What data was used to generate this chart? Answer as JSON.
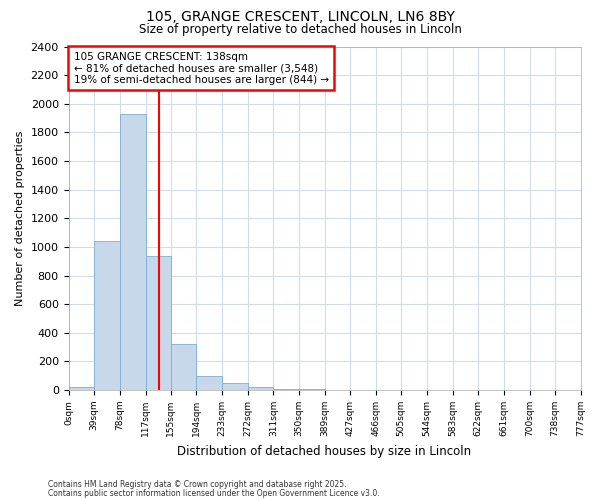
{
  "title1": "105, GRANGE CRESCENT, LINCOLN, LN6 8BY",
  "title2": "Size of property relative to detached houses in Lincoln",
  "xlabel": "Distribution of detached houses by size in Lincoln",
  "ylabel": "Number of detached properties",
  "bin_edges": [
    0,
    39,
    78,
    117,
    155,
    194,
    233,
    272,
    311,
    350,
    389,
    427,
    466,
    505,
    544,
    583,
    622,
    661,
    700,
    738,
    777
  ],
  "bin_labels": [
    "0sqm",
    "39sqm",
    "78sqm",
    "117sqm",
    "155sqm",
    "194sqm",
    "233sqm",
    "272sqm",
    "311sqm",
    "350sqm",
    "389sqm",
    "427sqm",
    "466sqm",
    "505sqm",
    "544sqm",
    "583sqm",
    "622sqm",
    "661sqm",
    "700sqm",
    "738sqm",
    "777sqm"
  ],
  "bar_heights": [
    20,
    1040,
    1930,
    940,
    320,
    100,
    50,
    20,
    10,
    5,
    2,
    0,
    0,
    0,
    0,
    0,
    0,
    0,
    0,
    0
  ],
  "bar_color": "#c8d8eb",
  "bar_edge_color": "#7bafd4",
  "property_sqm": 138,
  "annotation_title": "105 GRANGE CRESCENT: 138sqm",
  "annotation_line1": "← 81% of detached houses are smaller (3,548)",
  "annotation_line2": "19% of semi-detached houses are larger (844) →",
  "ylim": [
    0,
    2400
  ],
  "yticks": [
    0,
    200,
    400,
    600,
    800,
    1000,
    1200,
    1400,
    1600,
    1800,
    2000,
    2200,
    2400
  ],
  "footer1": "Contains HM Land Registry data © Crown copyright and database right 2025.",
  "footer2": "Contains public sector information licensed under the Open Government Licence v3.0.",
  "background_color": "#ffffff",
  "plot_background": "#ffffff",
  "grid_color": "#d0dce8"
}
